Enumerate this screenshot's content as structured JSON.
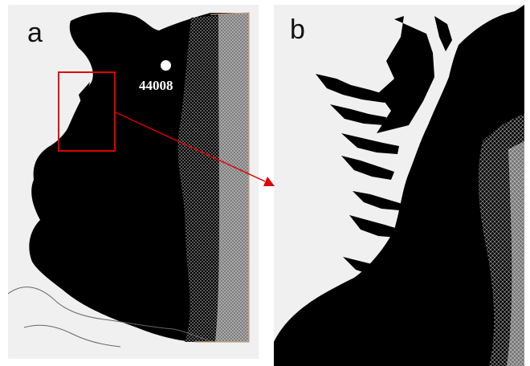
{
  "panels": {
    "a": {
      "letter": "a"
    },
    "b": {
      "letter": "b"
    }
  },
  "buoy": {
    "id": "44008"
  },
  "colors": {
    "land": "#f0f0f0",
    "mesh_dense": "#000000",
    "mesh_sparse": "#ffffff",
    "inset_box": "#e00000",
    "domain_border": "#c8a07a",
    "coast_line": "#666666"
  }
}
